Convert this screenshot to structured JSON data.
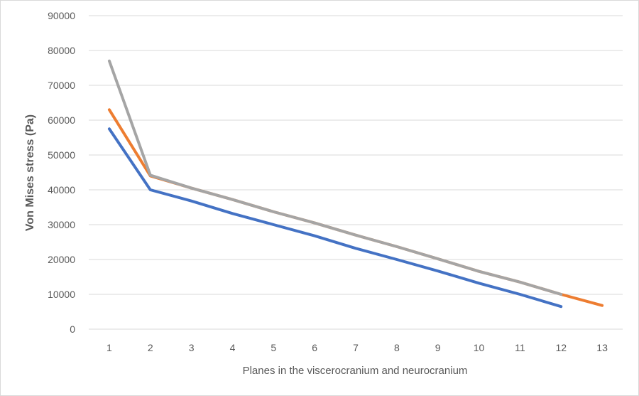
{
  "chart_data": {
    "type": "line",
    "xlabel": "Planes in the viscerocranium and neurocranium",
    "ylabel": "Von Mises stress  (Pa)",
    "ylim": [
      0,
      90000
    ],
    "yticks": [
      "0",
      "10000",
      "20000",
      "30000",
      "40000",
      "50000",
      "60000",
      "70000",
      "80000",
      "90000"
    ],
    "categories": [
      "1",
      "2",
      "3",
      "4",
      "5",
      "6",
      "7",
      "8",
      "9",
      "10",
      "11",
      "12",
      "13"
    ],
    "grid": true,
    "legend": "none",
    "series": [
      {
        "color": "#4472c4",
        "values": [
          57500,
          40000,
          36800,
          33200,
          30000,
          26800,
          23200,
          20000,
          16700,
          13200,
          10000,
          6500,
          null
        ]
      },
      {
        "color": "#ed7d31",
        "values": [
          63000,
          44000,
          40500,
          37200,
          33700,
          30500,
          27000,
          23700,
          20200,
          16600,
          13500,
          10000,
          6800
        ]
      },
      {
        "color": "#a5a5a5",
        "values": [
          77000,
          44200,
          40500,
          37200,
          33700,
          30500,
          27000,
          23700,
          20200,
          16600,
          13500,
          10000,
          null
        ]
      }
    ]
  }
}
